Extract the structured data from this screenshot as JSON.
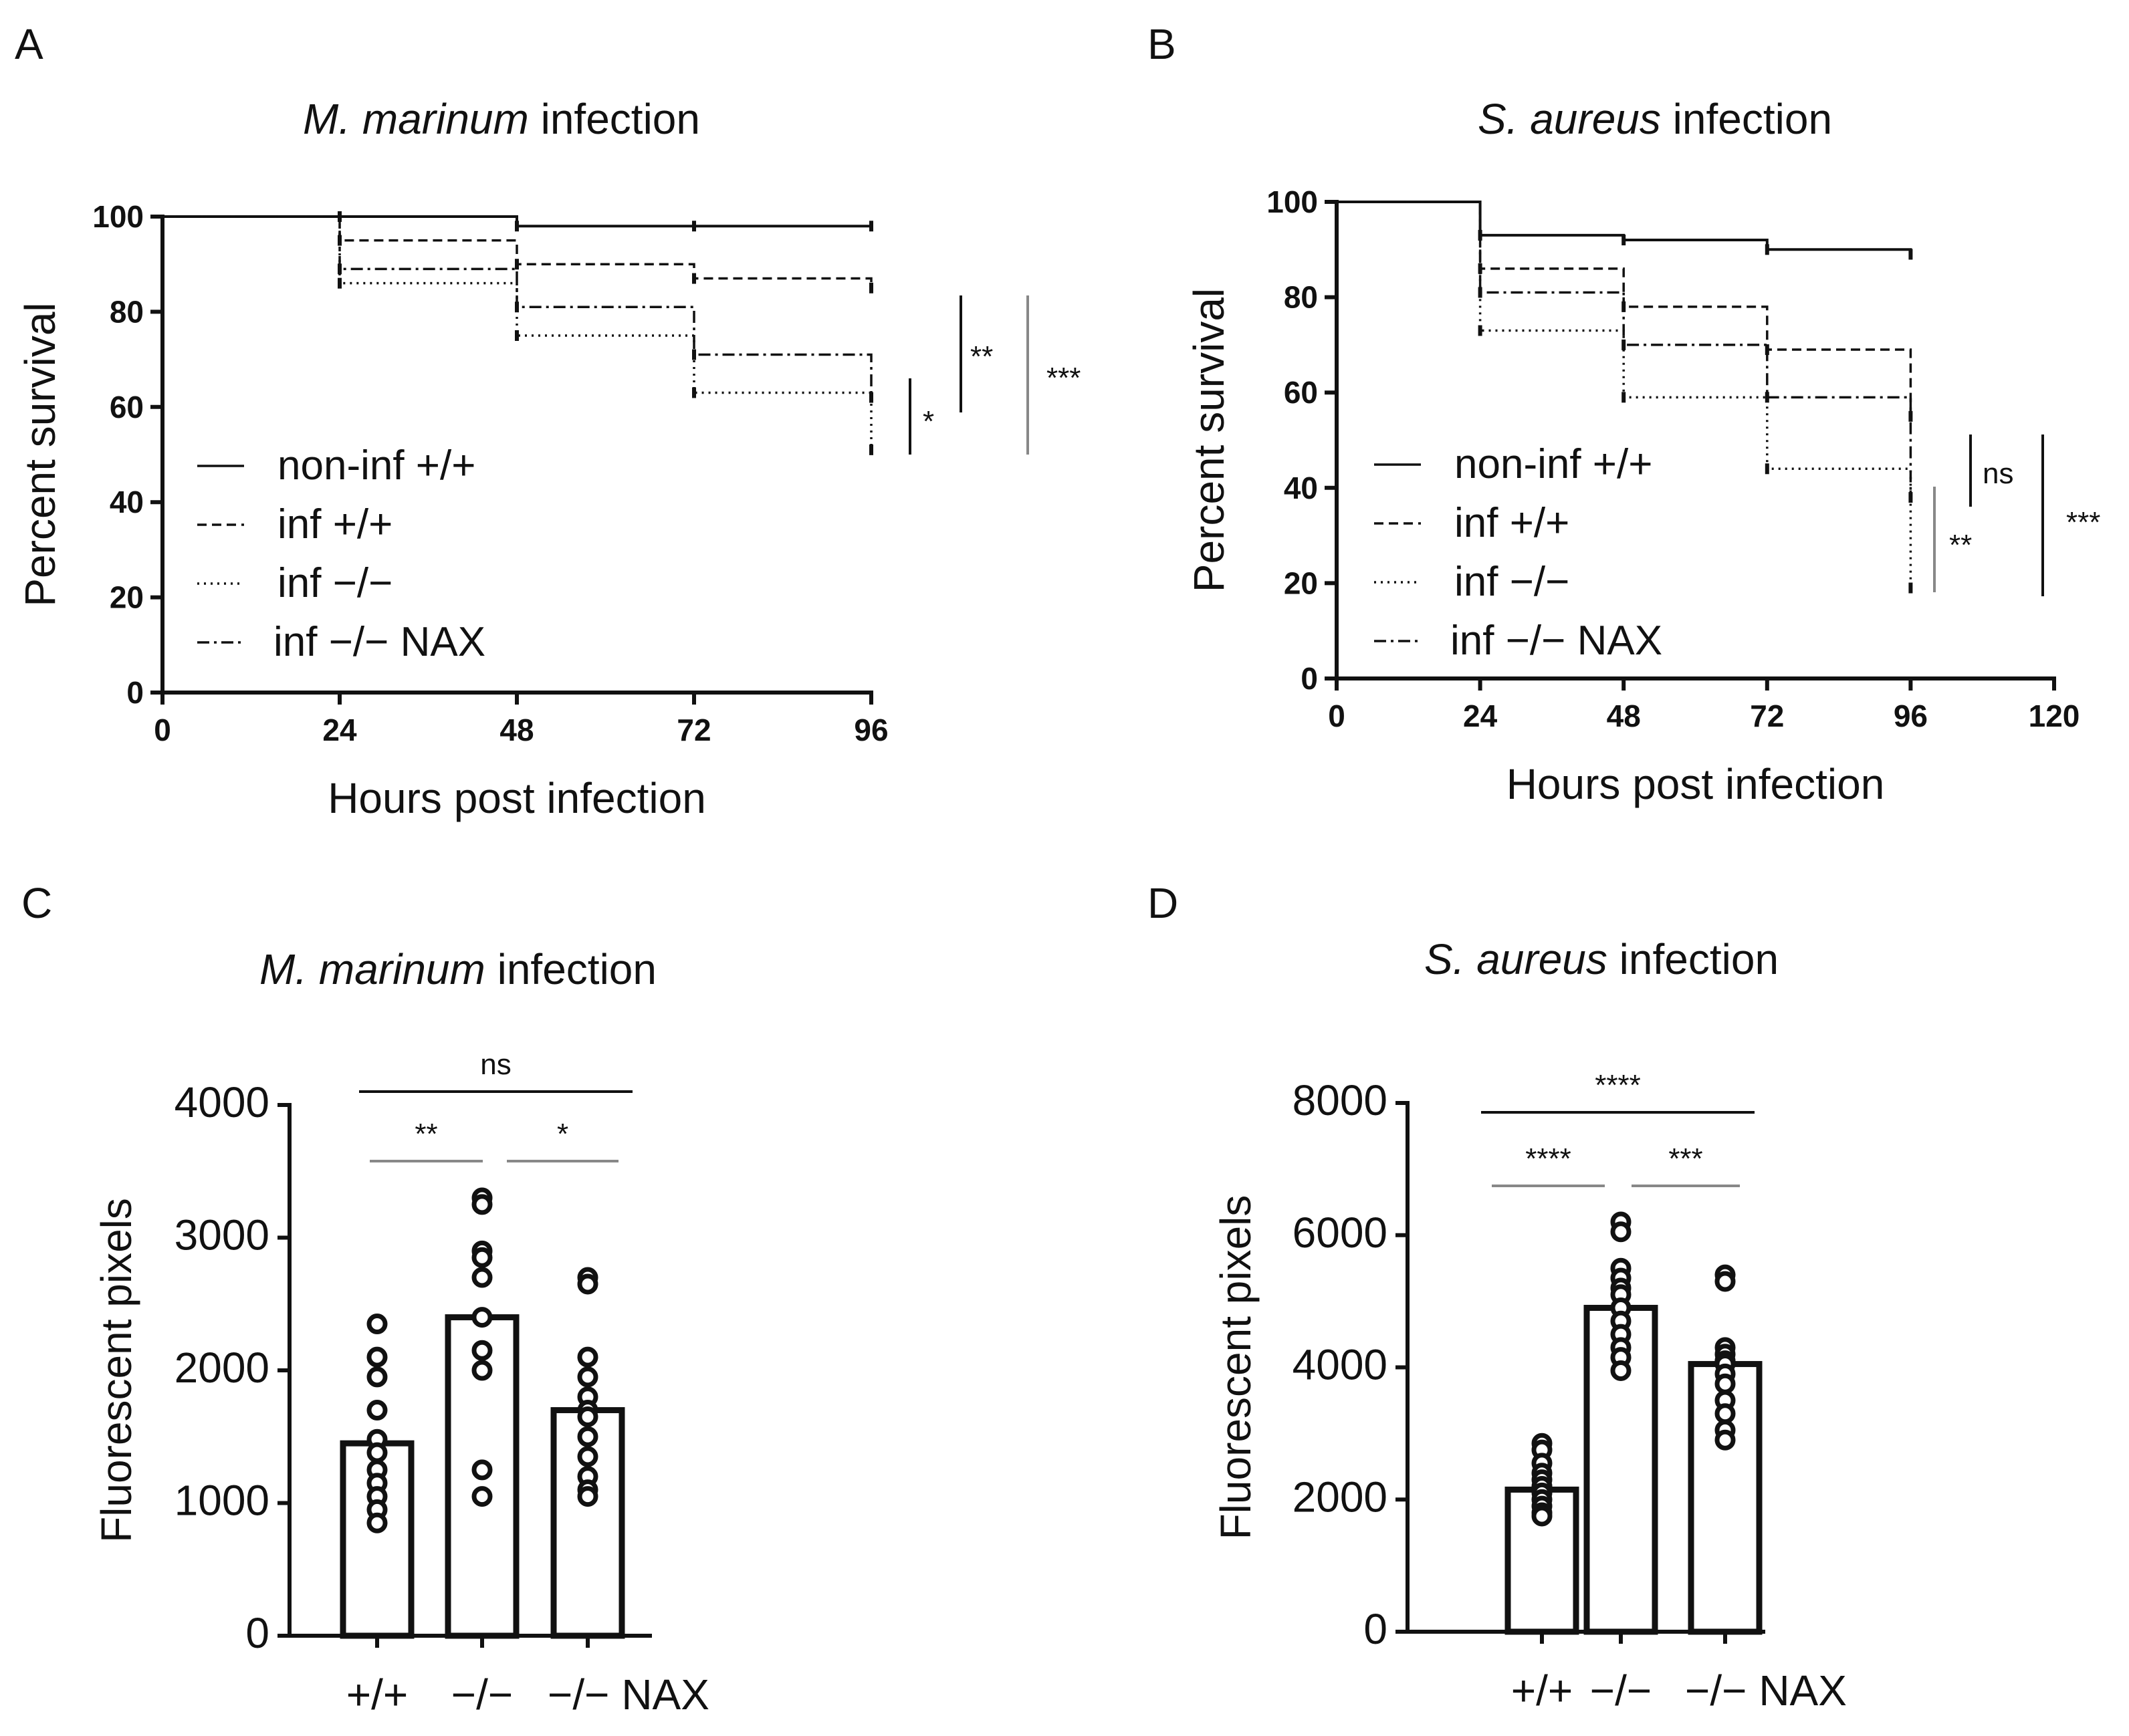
{
  "panels": [
    {
      "id": "A",
      "letter": "A",
      "title_italic": "M. marinum",
      "title_rest": " infection",
      "chart_data": {
        "type": "line",
        "subtype": "kaplan-meier",
        "xlabel": "Hours post infection",
        "ylabel": "Percent survival",
        "xlim": [
          0,
          96
        ],
        "ylim": [
          0,
          100
        ],
        "xticks": [
          0,
          24,
          48,
          72,
          96
        ],
        "yticks": [
          0,
          20,
          40,
          60,
          80,
          100
        ],
        "series": [
          {
            "name": "non-inf +/+",
            "style": "solid",
            "x": [
              0,
              24,
              48,
              72,
              96
            ],
            "y": [
              100,
              100,
              98,
              98,
              98
            ]
          },
          {
            "name": "inf +/+",
            "style": "dashed",
            "x": [
              0,
              24,
              48,
              72,
              96
            ],
            "y": [
              100,
              95,
              90,
              87,
              85
            ]
          },
          {
            "name": "inf −/−",
            "style": "dotted",
            "x": [
              0,
              24,
              48,
              72,
              96
            ],
            "y": [
              100,
              86,
              75,
              63,
              51
            ]
          },
          {
            "name": "inf −/−  NAX",
            "style": "dashdot",
            "x": [
              0,
              24,
              48,
              72,
              96
            ],
            "y": [
              100,
              89,
              81,
              71,
              62
            ]
          }
        ],
        "significance": [
          "*",
          "**",
          "***"
        ]
      }
    },
    {
      "id": "B",
      "letter": "B",
      "title_italic": "S. aureus",
      "title_rest": " infection",
      "chart_data": {
        "type": "line",
        "subtype": "kaplan-meier",
        "xlabel": "Hours post infection",
        "ylabel": "Percent survival",
        "xlim": [
          0,
          120
        ],
        "ylim": [
          0,
          100
        ],
        "xticks": [
          0,
          24,
          48,
          72,
          96,
          120
        ],
        "yticks": [
          0,
          20,
          40,
          60,
          80,
          100
        ],
        "series": [
          {
            "name": "non-inf +/+",
            "style": "solid",
            "x": [
              0,
              24,
              48,
              72,
              96
            ],
            "y": [
              100,
              93,
              92,
              90,
              89
            ]
          },
          {
            "name": "inf +/+",
            "style": "dashed",
            "x": [
              0,
              24,
              48,
              72,
              96
            ],
            "y": [
              100,
              86,
              78,
              69,
              55
            ]
          },
          {
            "name": "inf −/−",
            "style": "dotted",
            "x": [
              0,
              24,
              48,
              72,
              96
            ],
            "y": [
              100,
              73,
              59,
              44,
              19
            ]
          },
          {
            "name": "inf −/−  NAX",
            "style": "dashdot",
            "x": [
              0,
              24,
              48,
              72,
              96
            ],
            "y": [
              100,
              81,
              70,
              59,
              38
            ]
          }
        ],
        "significance": [
          "ns",
          "**",
          "***"
        ]
      }
    },
    {
      "id": "C",
      "letter": "C",
      "title_italic": "M. marinum",
      "title_rest": " infection",
      "chart_data": {
        "type": "bar",
        "ylabel": "Fluorescent pixels",
        "ylim": [
          0,
          4000
        ],
        "yticks": [
          0,
          1000,
          2000,
          3000,
          4000
        ],
        "categories": [
          "+/+",
          "−/−",
          "−/−  NAX"
        ],
        "values": [
          1450,
          2400,
          1700
        ],
        "points": [
          [
            2350,
            2100,
            1950,
            1700,
            1480,
            1380,
            1250,
            1150,
            1050,
            950,
            850
          ],
          [
            3300,
            3250,
            2900,
            2850,
            2700,
            2400,
            2150,
            2000,
            1250,
            1050
          ],
          [
            2700,
            2650,
            2100,
            1950,
            1800,
            1700,
            1650,
            1500,
            1350,
            1200,
            1100,
            1050
          ]
        ],
        "comparisons": [
          {
            "label": "ns",
            "from": 0,
            "to": 2
          },
          {
            "label": "**",
            "from": 0,
            "to": 1
          },
          {
            "label": "*",
            "from": 1,
            "to": 2
          }
        ]
      }
    },
    {
      "id": "D",
      "letter": "D",
      "title_italic": "S. aureus",
      "title_rest": " infection",
      "chart_data": {
        "type": "bar",
        "ylabel": "Fluorescent pixels",
        "ylim": [
          0,
          8000
        ],
        "yticks": [
          0,
          2000,
          4000,
          6000,
          8000
        ],
        "categories": [
          "+/+",
          "−/−",
          "−/−  NAX"
        ],
        "values": [
          2150,
          4900,
          4050
        ],
        "points": [
          [
            2850,
            2750,
            2550,
            2400,
            2300,
            2200,
            2100,
            2000,
            1900,
            1800,
            1750
          ],
          [
            6200,
            6050,
            5500,
            5350,
            5200,
            5100,
            4900,
            4700,
            4500,
            4300,
            4150,
            3950
          ],
          [
            5400,
            5300,
            4300,
            4200,
            4100,
            4050,
            3900,
            3750,
            3500,
            3300,
            3050,
            2900
          ]
        ],
        "comparisons": [
          {
            "label": "****",
            "from": 0,
            "to": 2
          },
          {
            "label": "****",
            "from": 0,
            "to": 1
          },
          {
            "label": "***",
            "from": 1,
            "to": 2
          }
        ]
      }
    }
  ]
}
